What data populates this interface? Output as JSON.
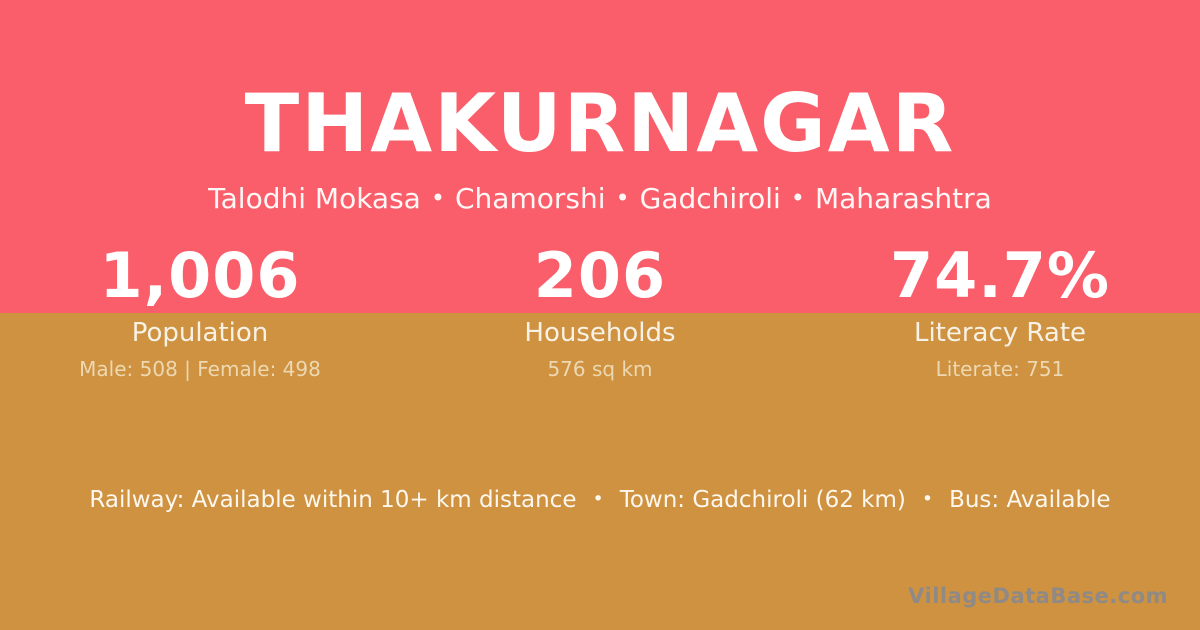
{
  "theme": {
    "top_bg": "#FB5E6B",
    "bottom_bg": "#CE9240",
    "heading_text": "#FFFFFF",
    "muted_text_on_gold": "#EDD8B2",
    "watermark_color": "#8A8A8C"
  },
  "header": {
    "title": "THAKURNAGAR",
    "separator": "•",
    "breadcrumb": [
      {
        "label": "Talodhi Mokasa"
      },
      {
        "label": "Chamorshi"
      },
      {
        "label": "Gadchiroli"
      },
      {
        "label": "Maharashtra"
      }
    ]
  },
  "stats": [
    {
      "value": "1,006",
      "label": "Population",
      "detail": "Male: 508 | Female: 498"
    },
    {
      "value": "206",
      "label": "Households",
      "detail": "576 sq km"
    },
    {
      "value": "74.7%",
      "label": "Literacy Rate",
      "detail": "Literate: 751"
    }
  ],
  "amenities": {
    "separator": "•",
    "items": [
      {
        "label": "Railway: Available within 10+ km distance"
      },
      {
        "label": "Town: Gadchiroli (62 km)"
      },
      {
        "label": "Bus: Available"
      }
    ]
  },
  "watermark": "VillageDataBase.com"
}
